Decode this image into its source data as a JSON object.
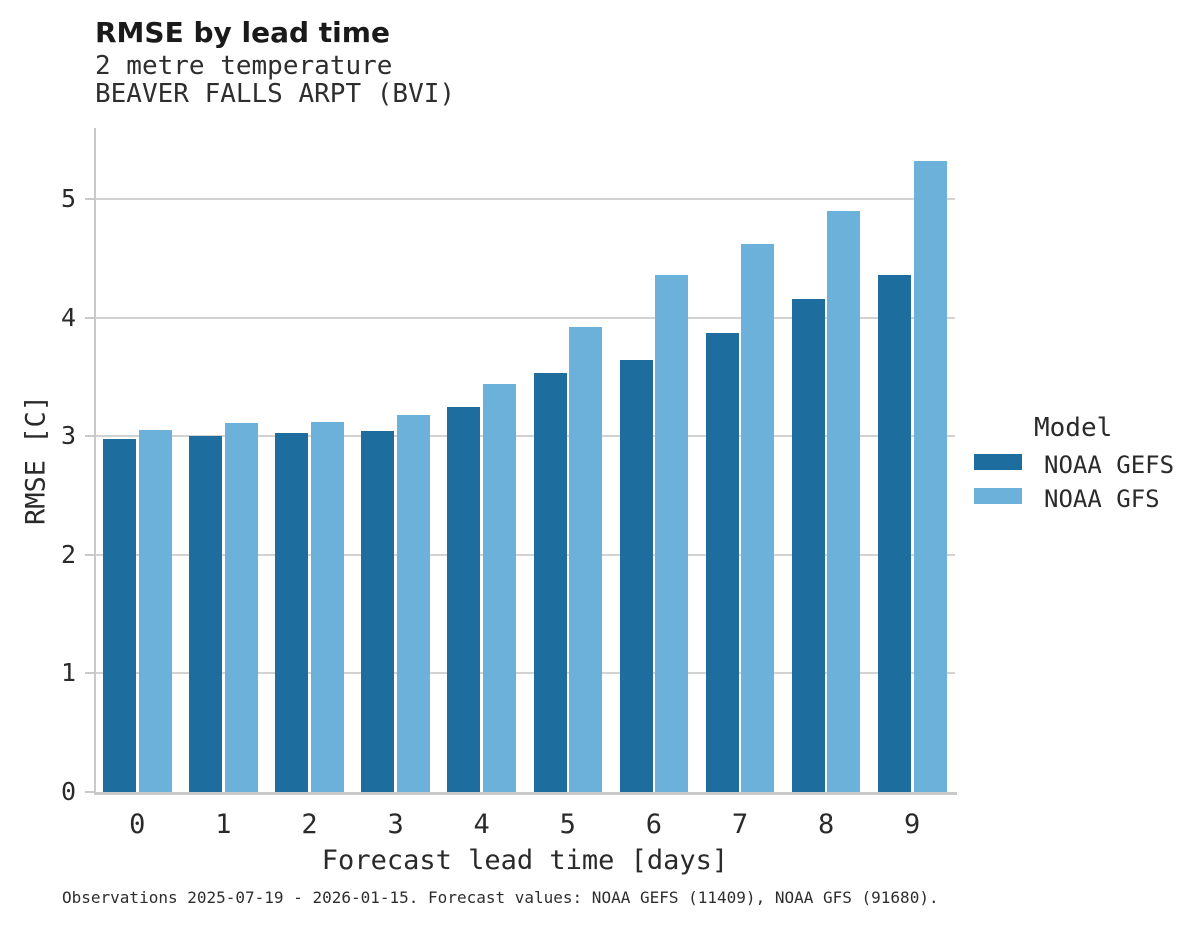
{
  "header": {
    "title": "RMSE by lead time",
    "subtitle1": "2 metre temperature",
    "subtitle2": "BEAVER FALLS ARPT (BVI)"
  },
  "chart_data": {
    "type": "bar",
    "title": "RMSE by lead time",
    "subtitle": [
      "2 metre temperature",
      "BEAVER FALLS ARPT (BVI)"
    ],
    "categories": [
      "0",
      "1",
      "2",
      "3",
      "4",
      "5",
      "6",
      "7",
      "8",
      "9"
    ],
    "series": [
      {
        "name": "NOAA GEFS",
        "color": "#1d6e9e",
        "values": [
          2.98,
          3.0,
          3.03,
          3.04,
          3.25,
          3.53,
          3.64,
          3.87,
          4.16,
          4.36
        ]
      },
      {
        "name": "NOAA GFS",
        "color": "#6cb1d9",
        "values": [
          3.05,
          3.11,
          3.12,
          3.18,
          3.44,
          3.92,
          4.36,
          4.62,
          4.9,
          5.32
        ]
      }
    ],
    "xlabel": "Forecast lead time [days]",
    "ylabel": "RMSE [C]",
    "ylim": [
      0,
      5.6
    ],
    "yticks": [
      0,
      1,
      2,
      3,
      4,
      5
    ],
    "grid": true,
    "legend_position": "right",
    "legend_title": "Model"
  },
  "legend": {
    "title": "Model",
    "items": [
      {
        "label": "NOAA GEFS",
        "color": "#1d6e9e"
      },
      {
        "label": "NOAA GFS",
        "color": "#6cb1d9"
      }
    ]
  },
  "caption": "Observations 2025-07-19 - 2026-01-15. Forecast values: NOAA GEFS (11409), NOAA GFS (91680)."
}
